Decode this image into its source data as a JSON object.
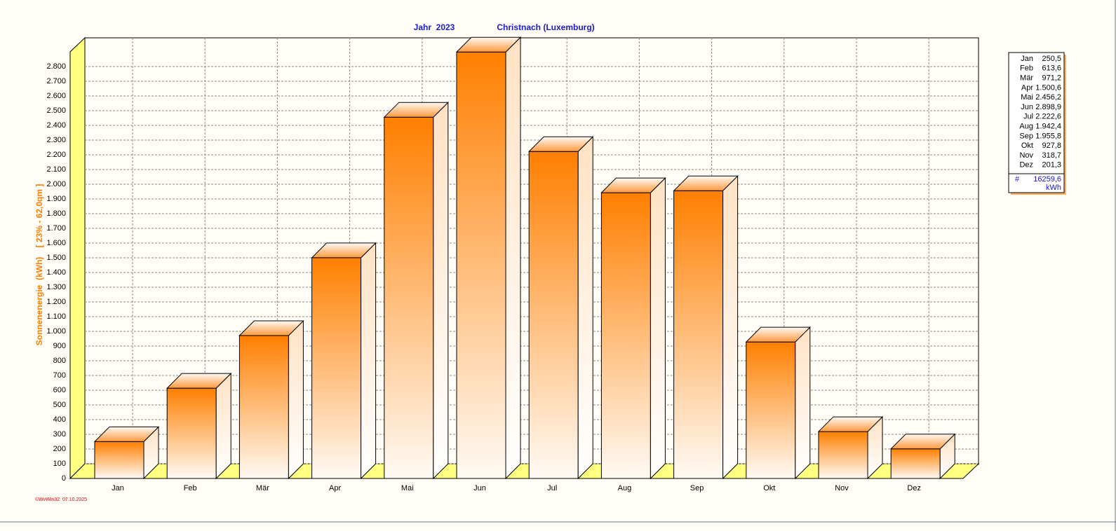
{
  "chart_data": {
    "type": "bar3d",
    "title": "Jahr  2023",
    "subtitle": "Christnach (Luxemburg)",
    "y_label": "Sonnenenergie  (kWh)    [ 23% - 62,0qm ]",
    "footer": "©WvWin32  07.10.2025",
    "categories": [
      "Jan",
      "Feb",
      "Mär",
      "Apr",
      "Mai",
      "Jun",
      "Jul",
      "Aug",
      "Sep",
      "Okt",
      "Nov",
      "Dez"
    ],
    "values": [
      250.5,
      613.6,
      971.2,
      1500.6,
      2456.2,
      2898.9,
      2222.6,
      1942.4,
      1955.8,
      927.8,
      318.7,
      201.3
    ],
    "value_labels": [
      "250,5",
      "613,6",
      "971,2",
      "1.500,6",
      "2.456,2",
      "2.898,9",
      "2.222,6",
      "1.942,4",
      "1.955,8",
      "927,8",
      "318,7",
      "201,3"
    ],
    "total_symbol": "#",
    "total_label": "16259,6",
    "unit": "kWh",
    "color": "#ff7f00",
    "ylim": [
      0,
      2900
    ],
    "yticks": [
      0,
      100,
      200,
      300,
      400,
      500,
      600,
      700,
      800,
      900,
      {
        "value": 1000,
        "label": "1.000"
      },
      {
        "value": 1100,
        "label": "1.100"
      },
      {
        "value": 1200,
        "label": "1.200"
      },
      {
        "value": 1300,
        "label": "1.300"
      },
      {
        "value": 1400,
        "label": "1.400"
      },
      {
        "value": 1500,
        "label": "1.500"
      },
      {
        "value": 1600,
        "label": "1.600"
      },
      {
        "value": 1700,
        "label": "1.700"
      },
      {
        "value": 1800,
        "label": "1.800"
      },
      {
        "value": 1900,
        "label": "1.900"
      },
      {
        "value": 2000,
        "label": "2.000"
      },
      {
        "value": 2100,
        "label": "2.100"
      },
      {
        "value": 2200,
        "label": "2.200"
      },
      {
        "value": 2300,
        "label": "2.300"
      },
      {
        "value": 2400,
        "label": "2.400"
      },
      {
        "value": 2500,
        "label": "2.500"
      },
      {
        "value": 2600,
        "label": "2.600"
      },
      {
        "value": 2700,
        "label": "2.700"
      },
      {
        "value": 2800,
        "label": "2.800"
      }
    ],
    "grid": true
  }
}
